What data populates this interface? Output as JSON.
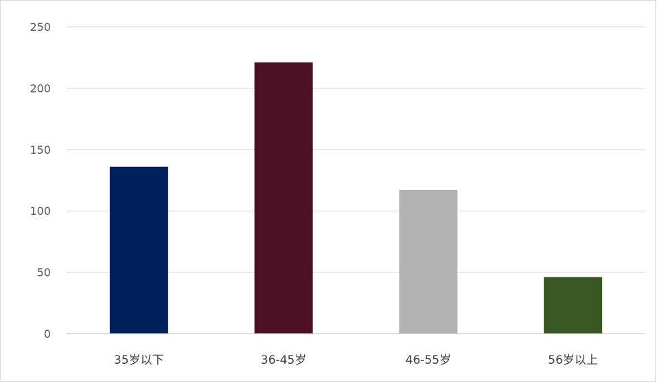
{
  "chart_data": {
    "type": "bar",
    "categories": [
      "35岁以下",
      "36-45岁",
      "46-55岁",
      "56岁以上"
    ],
    "values": [
      136,
      221,
      117,
      46
    ],
    "colors": [
      "#00205b",
      "#4d0f24",
      "#b3b3b3",
      "#385723"
    ],
    "ylim": [
      0,
      250
    ],
    "yticks": [
      0,
      50,
      100,
      150,
      200,
      250
    ],
    "grid": true,
    "legend": "none",
    "title": "",
    "xlabel": "",
    "ylabel": ""
  }
}
